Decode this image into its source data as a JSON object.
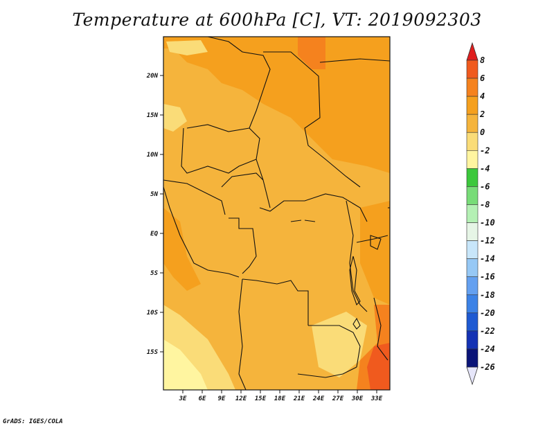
{
  "title": "Temperature at 600hPa [C], VT: 2019092303",
  "credit": "GrADS: IGES/COLA",
  "map": {
    "y_ticks": [
      "20N",
      "15N",
      "10N",
      "5N",
      "EQ",
      "5S",
      "10S",
      "15S"
    ],
    "x_ticks": [
      "3E",
      "6E",
      "9E",
      "12E",
      "15E",
      "18E",
      "21E",
      "24E",
      "27E",
      "30E",
      "33E"
    ]
  },
  "colorbar": {
    "levels": [
      "8",
      "6",
      "4",
      "2",
      "0",
      "-2",
      "-4",
      "-6",
      "-8",
      "-10",
      "-12",
      "-14",
      "-16",
      "-18",
      "-20",
      "-22",
      "-24",
      "-26"
    ],
    "colors": [
      "#e8321e",
      "#f05a1e",
      "#f5821e",
      "#f5a01e",
      "#f5b43c",
      "#fadc78",
      "#fff5a0",
      "#3cc83c",
      "#78dc78",
      "#b4f0b4",
      "#e6f5e6",
      "#c8e6fa",
      "#96c8f5",
      "#64a0f0",
      "#3c82e6",
      "#1e5ad2",
      "#1432b4",
      "#0a1478"
    ],
    "top_arrow_color": "#e01e1e",
    "bottom_arrow_color": "#e6e6fa"
  }
}
